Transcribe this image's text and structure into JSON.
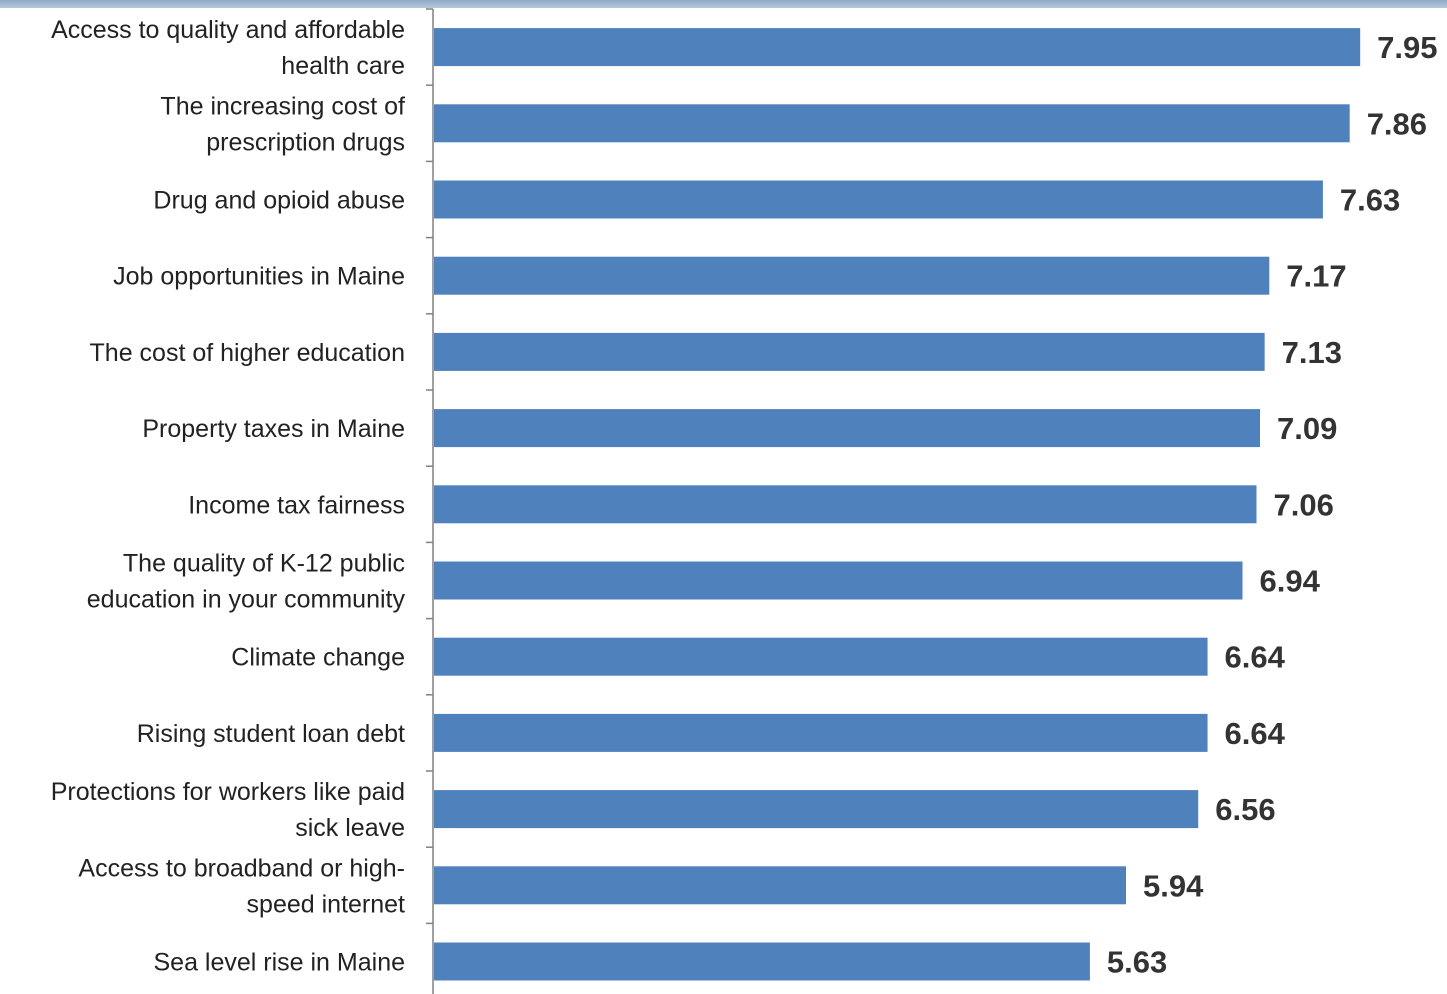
{
  "chart_data": {
    "type": "bar",
    "orientation": "horizontal",
    "categories": [
      [
        "Access to quality and affordable",
        "health care"
      ],
      [
        "The increasing cost of",
        "prescription drugs"
      ],
      [
        "Drug and opioid abuse"
      ],
      [
        "Job opportunities in Maine"
      ],
      [
        "The cost of higher education"
      ],
      [
        "Property taxes in Maine"
      ],
      [
        "Income tax fairness"
      ],
      [
        "The quality of K-12 public",
        "education in your community"
      ],
      [
        "Climate change"
      ],
      [
        "Rising student loan debt"
      ],
      [
        "Protections for workers like paid",
        "sick leave"
      ],
      [
        "Access to broadband or high-",
        "speed internet"
      ],
      [
        "Sea level rise in Maine"
      ]
    ],
    "values": [
      7.95,
      7.86,
      7.63,
      7.17,
      7.13,
      7.09,
      7.06,
      6.94,
      6.64,
      6.64,
      6.56,
      5.94,
      5.63
    ],
    "value_labels": [
      "7.95",
      "7.86",
      "7.63",
      "7.17",
      "7.13",
      "7.09",
      "7.06",
      "6.94",
      "6.64",
      "6.64",
      "6.56",
      "5.94",
      "5.63"
    ],
    "xlim": [
      0,
      8
    ],
    "grid": false,
    "colors": {
      "bar": "#4f81bd",
      "axis": "#808080",
      "header_strip": "#9fb6d3"
    }
  }
}
